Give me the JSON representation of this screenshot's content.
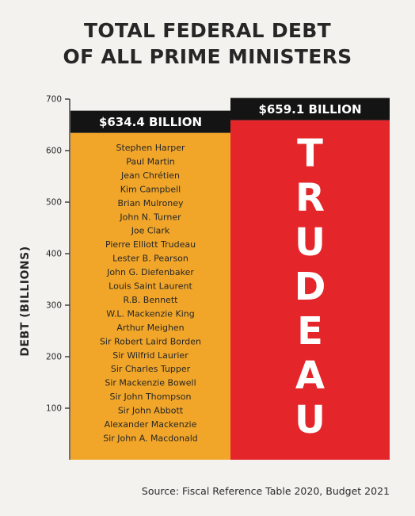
{
  "title": {
    "line1": "TOTAL FEDERAL DEBT",
    "line2": "OF ALL PRIME MINISTERS"
  },
  "source": "Source: Fiscal Reference Table 2020, Budget 2021",
  "colors": {
    "others_bar": "#f1a62a",
    "trudeau_bar": "#e4262b",
    "label_box": "#141414",
    "label_text": "#ffffff"
  },
  "chart_data": {
    "type": "bar",
    "ylabel": "DEBT (BILLIONS)",
    "ylim": [
      0,
      700
    ],
    "yticks": [
      100,
      200,
      300,
      400,
      500,
      600,
      700
    ],
    "bars": [
      {
        "value": 634.4,
        "value_label": "$634.4 BILLION",
        "color": "#f1a62a",
        "names": [
          "Stephen Harper",
          "Paul Martin",
          "Jean Chrétien",
          "Kim Campbell",
          "Brian Mulroney",
          "John N. Turner",
          "Joe Clark",
          "Pierre Elliott Trudeau",
          "Lester B. Pearson",
          "John G. Diefenbaker",
          "Louis Saint Laurent",
          "R.B. Bennett",
          "W.L. Mackenzie King",
          "Arthur Meighen",
          "Sir Robert Laird Borden",
          "Sir Wilfrid Laurier",
          "Sir Charles Tupper",
          "Sir Mackenzie Bowell",
          "Sir John Thompson",
          "Sir John Abbott",
          "Alexander Mackenzie",
          "Sir John A. Macdonald"
        ]
      },
      {
        "value": 659.1,
        "value_label": "$659.1 BILLION",
        "color": "#e4262b",
        "vertical_label": [
          "T",
          "R",
          "U",
          "D",
          "E",
          "A",
          "U"
        ]
      }
    ]
  }
}
